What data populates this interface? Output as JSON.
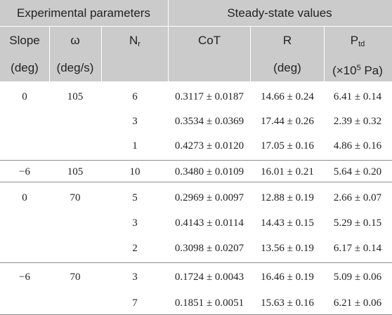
{
  "header": {
    "group_experimental": "Experimental parameters",
    "group_steady": "Steady-state values",
    "col_slope": "Slope",
    "col_slope_unit": "(deg)",
    "col_omega": "ω",
    "col_omega_unit": "(deg/s)",
    "col_nr_main": "N",
    "col_nr_sub": "r",
    "col_cot": "CoT",
    "col_r": "R",
    "col_r_unit": "(deg)",
    "col_ptd_main": "P",
    "col_ptd_sub": "td",
    "col_ptd_unit_pre": "(×10",
    "col_ptd_unit_sup": "5",
    "col_ptd_unit_post": " Pa)"
  },
  "rows": [
    {
      "slope": "0",
      "omega": "105",
      "nr": "6",
      "cot": "0.3117 ± 0.0187",
      "r": "14.66 ± 0.24",
      "ptd": "6.41 ± 0.14"
    },
    {
      "slope": "",
      "omega": "",
      "nr": "3",
      "cot": "0.3534 ± 0.0369",
      "r": "17.44 ± 0.26",
      "ptd": "2.39 ± 0.32"
    },
    {
      "slope": "",
      "omega": "",
      "nr": "1",
      "cot": "0.4273 ± 0.0120",
      "r": "17.05 ± 0.16",
      "ptd": "4.86 ± 0.16"
    },
    {
      "slope": "−6",
      "omega": "105",
      "nr": "10",
      "cot": "0.3480 ± 0.0109",
      "r": "16.01 ± 0.21",
      "ptd": "5.64 ± 0.20"
    },
    {
      "slope": "0",
      "omega": "70",
      "nr": "5",
      "cot": "0.2969 ± 0.0097",
      "r": "12.88 ± 0.19",
      "ptd": "2.66 ± 0.07"
    },
    {
      "slope": "",
      "omega": "",
      "nr": "3",
      "cot": "0.4143 ± 0.0114",
      "r": "14.43 ± 0.15",
      "ptd": "5.29 ± 0.15"
    },
    {
      "slope": "",
      "omega": "",
      "nr": "2",
      "cot": "0.3098 ± 0.0207",
      "r": "13.56 ± 0.19",
      "ptd": "6.17 ± 0.14"
    },
    {
      "slope": "−6",
      "omega": "70",
      "nr": "3",
      "cot": "0.1724 ± 0.0043",
      "r": "16.46 ± 0.19",
      "ptd": "5.09 ± 0.06"
    },
    {
      "slope": "",
      "omega": "",
      "nr": "7",
      "cot": "0.1851 ± 0.0051",
      "r": "15.63 ± 0.16",
      "ptd": "6.21 ± 0.06"
    }
  ]
}
